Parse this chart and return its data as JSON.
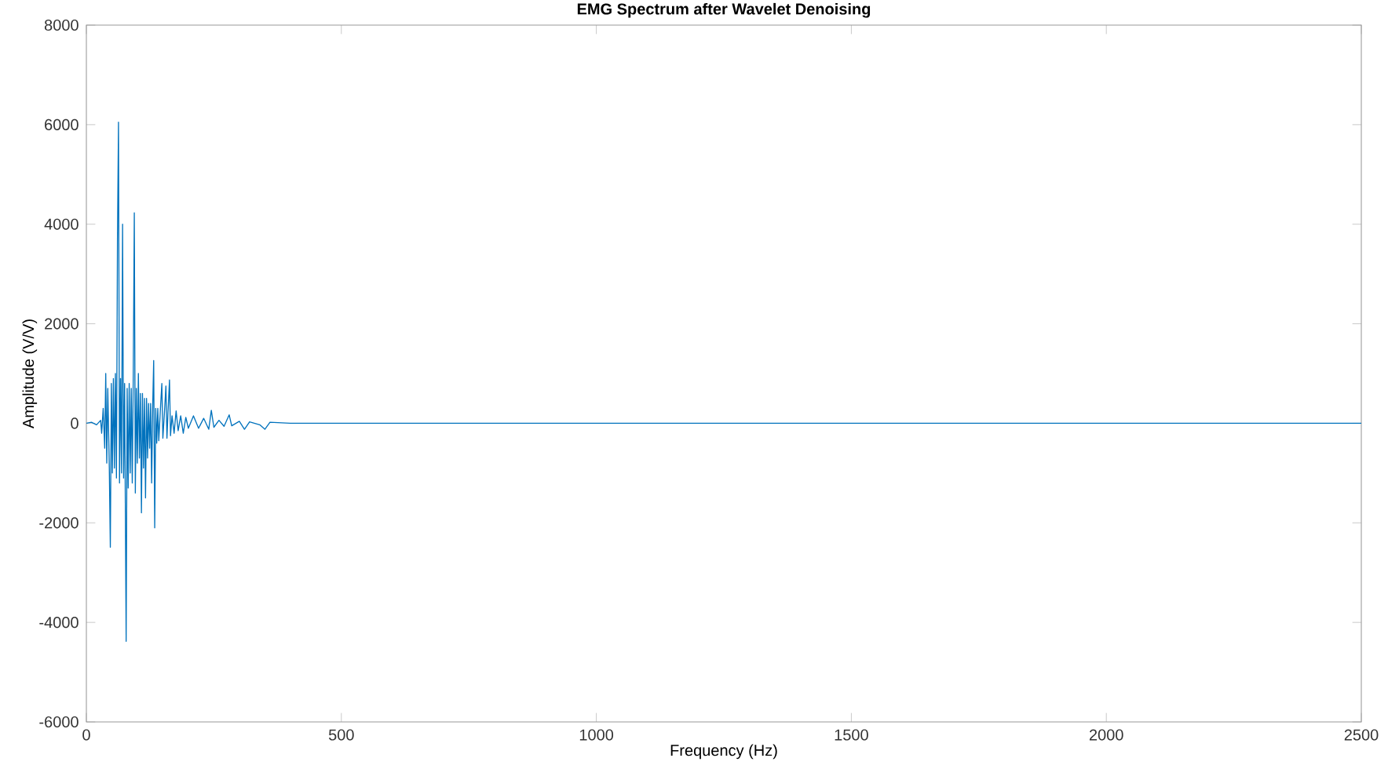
{
  "chart_data": {
    "type": "line",
    "title": "EMG Spectrum after Wavelet Denoising",
    "xlabel": "Frequency (Hz)",
    "ylabel": "Amplitude (V/V)",
    "x": [
      0,
      10,
      20,
      28,
      30,
      33,
      36,
      38,
      40,
      42,
      45,
      47,
      49,
      51,
      53,
      55,
      57,
      59,
      61,
      63,
      65,
      67,
      69,
      71,
      73,
      75,
      78,
      80,
      82,
      84,
      86,
      88,
      90,
      92,
      94,
      96,
      98,
      100,
      102,
      104,
      106,
      108,
      110,
      112,
      114,
      116,
      118,
      120,
      122,
      124,
      126,
      128,
      130,
      132,
      134,
      136,
      138,
      140,
      142,
      145,
      148,
      150,
      153,
      156,
      158,
      160,
      163,
      165,
      168,
      172,
      176,
      180,
      185,
      190,
      195,
      200,
      210,
      220,
      230,
      240,
      245,
      250,
      260,
      270,
      280,
      285,
      300,
      310,
      320,
      340,
      350,
      360,
      400,
      450,
      500,
      700,
      1000,
      1500,
      2000,
      2500
    ],
    "values": [
      0,
      20,
      -30,
      60,
      -200,
      300,
      -500,
      1000,
      -800,
      700,
      -900,
      -2490,
      800,
      -1000,
      900,
      -900,
      1000,
      -1100,
      3700,
      6050,
      -1200,
      900,
      -1000,
      4000,
      -1100,
      800,
      -4380,
      700,
      -1300,
      800,
      -1000,
      700,
      -1200,
      1000,
      4230,
      -1400,
      700,
      -800,
      1000,
      -700,
      600,
      -1800,
      600,
      -900,
      500,
      -1500,
      500,
      -700,
      400,
      -500,
      400,
      -1200,
      300,
      1260,
      -2100,
      300,
      -400,
      300,
      -350,
      250,
      800,
      -300,
      200,
      750,
      -300,
      200,
      870,
      -250,
      150,
      -200,
      250,
      -150,
      150,
      -200,
      120,
      -100,
      150,
      -100,
      100,
      -120,
      260,
      -80,
      60,
      -60,
      170,
      -50,
      40,
      -120,
      30,
      -30,
      -120,
      20,
      0,
      0,
      0,
      0,
      0,
      0,
      0,
      0
    ],
    "color": "#0072bd",
    "xlim": [
      0,
      2500
    ],
    "ylim": [
      -6000,
      8000
    ],
    "xticks": [
      0,
      500,
      1000,
      1500,
      2000,
      2500
    ],
    "yticks": [
      -6000,
      -4000,
      -2000,
      0,
      2000,
      4000,
      6000,
      8000
    ]
  }
}
